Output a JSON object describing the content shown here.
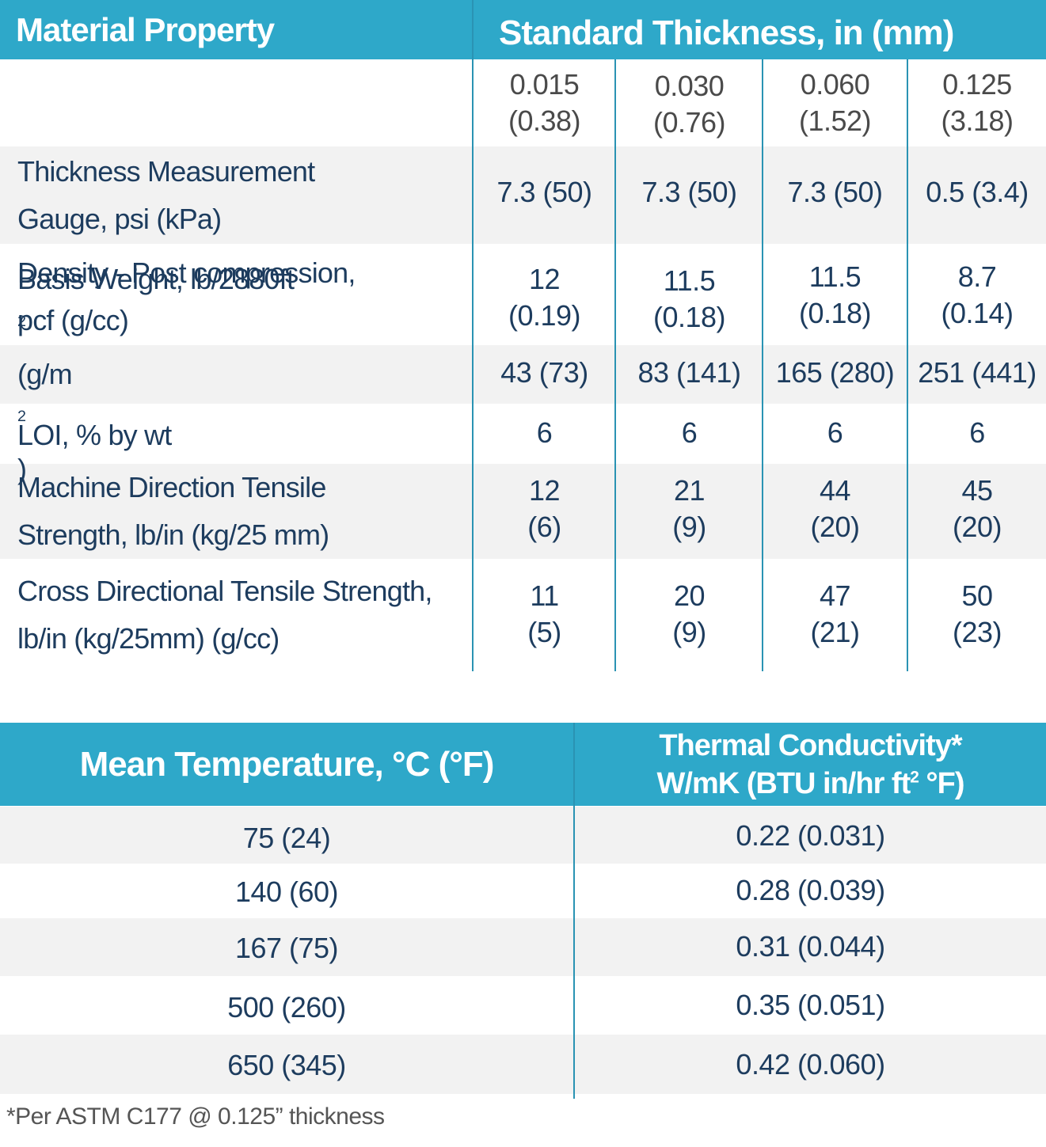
{
  "table1": {
    "header_property": "Material Property",
    "header_thickness": "Standard Thickness, in (mm)",
    "thickness_columns": [
      {
        "in": "0.015",
        "mm": "(0.38)"
      },
      {
        "in": "0.030",
        "mm": "(0.76)"
      },
      {
        "in": "0.060",
        "mm": "(1.52)"
      },
      {
        "in": "0.125",
        "mm": "(3.18)"
      }
    ],
    "rows": {
      "gauge": {
        "label1": "Thickness Measurement",
        "label2": "Gauge, psi (kPa)",
        "values": [
          "7.3 (50)",
          "7.3 (50)",
          "7.3 (50)",
          "0.5 (3.4)"
        ]
      },
      "density": {
        "label1": "Density - Post compression,",
        "label2": "pcf (g/cc)",
        "values": [
          {
            "a": "12",
            "b": "(0.19)"
          },
          {
            "a": "11.5",
            "b": "(0.18)"
          },
          {
            "a": "11.5",
            "b": "(0.18)"
          },
          {
            "a": "8.7",
            "b": "(0.14)"
          }
        ]
      },
      "basis": {
        "label_a": "Basis Weight, lb/2880ft",
        "label_sup1": "2",
        "label_b": " (g/m",
        "label_sup2": "2",
        "label_c": ")",
        "values": [
          "43 (73)",
          "83 (141)",
          "165 (280)",
          "251 (441)"
        ]
      },
      "loi": {
        "label": "LOI, % by wt",
        "values": [
          "6",
          "6",
          "6",
          "6"
        ]
      },
      "md_tensile": {
        "label1": "Machine Direction Tensile",
        "label2": "Strength, lb/in (kg/25 mm)",
        "values": [
          {
            "a": "12",
            "b": "(6)"
          },
          {
            "a": "21",
            "b": "(9)"
          },
          {
            "a": "44",
            "b": "(20)"
          },
          {
            "a": "45",
            "b": "(20)"
          }
        ]
      },
      "cd_tensile": {
        "label1": "Cross Directional Tensile Strength,",
        "label2": "lb/in (kg/25mm) (g/cc)",
        "values": [
          {
            "a": "11",
            "b": "(5)"
          },
          {
            "a": "20",
            "b": "(9)"
          },
          {
            "a": "47",
            "b": "(21)"
          },
          {
            "a": "50",
            "b": "(23)"
          }
        ]
      }
    }
  },
  "table2": {
    "header_temp": "Mean Temperature, °C (°F)",
    "header_tc_line1": "Thermal Conductivity*",
    "header_tc_line2_a": "W/mK (BTU in/hr ft",
    "header_tc_line2_sup": "2",
    "header_tc_line2_b": " °F)",
    "rows": [
      {
        "temp": "75 (24)",
        "tc": "0.22 (0.031)"
      },
      {
        "temp": "140 (60)",
        "tc": "0.28 (0.039)"
      },
      {
        "temp": "167 (75)",
        "tc": "0.31 (0.044)"
      },
      {
        "temp": "500 (260)",
        "tc": "0.35 (0.051)"
      },
      {
        "temp": "650 (345)",
        "tc": "0.42 (0.060)"
      }
    ]
  },
  "footnote": "*Per ASTM C177 @ 0.125” thickness",
  "colors": {
    "header_bg": "#2ea8c9",
    "band_bg": "#f2f2f2",
    "label_text": "#1d3c5e",
    "value_text": "#4a4a4a",
    "divider": "#2a93b3"
  }
}
